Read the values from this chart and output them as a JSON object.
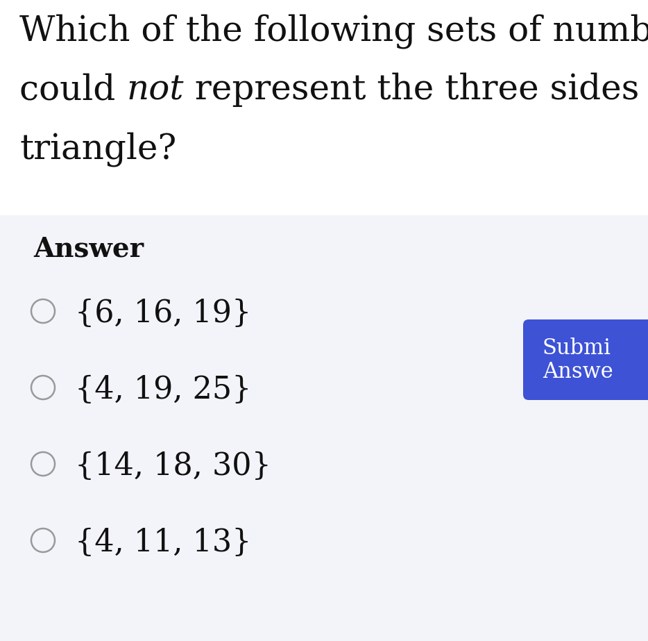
{
  "question_line1": "Which of the following sets of numbers",
  "question_line2_part1": "could ",
  "question_line2_italic": "not",
  "question_line2_part2": " represent the three sides of a",
  "question_line3": "triangle?",
  "answer_label": "Answer",
  "options": [
    "{6, 16, 19}",
    "{4, 19, 25}",
    "{14, 18, 30}",
    "{4, 11, 13}"
  ],
  "button_text_line1": "Submi",
  "button_text_line2": "Answe",
  "bg_color_question": "#ffffff",
  "bg_color_answer": "#f3f4f9",
  "button_color": "#3d52d5",
  "text_color": "#111111",
  "answer_label_color": "#111111",
  "option_text_color": "#111111",
  "button_text_color": "#ffffff",
  "radio_color": "#999999",
  "fig_width": 9.34,
  "fig_height": 9.23,
  "dpi": 100
}
